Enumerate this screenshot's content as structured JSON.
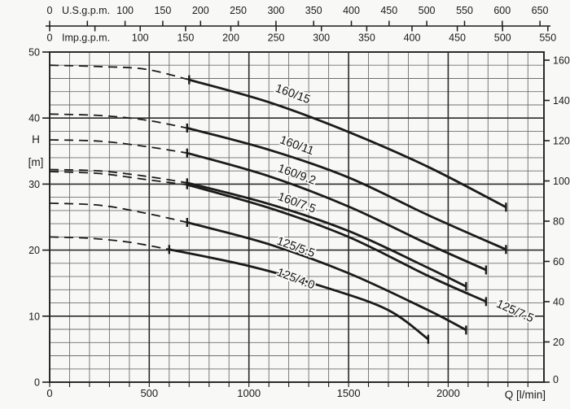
{
  "figure": {
    "background": "#f8f8f6",
    "ink": "#1b1b1b",
    "grid_minor_color": "#6f6f6f",
    "grid_major_color": "#2b2b2b"
  },
  "axes": {
    "top_primary": {
      "title": "U.S.g.p.m.",
      "unit_to_lmin": 3.7854,
      "labeled_ticks": [
        0,
        100,
        150,
        200,
        250,
        300,
        350,
        400,
        450,
        500,
        550,
        600,
        650
      ],
      "minor_step": 50
    },
    "top_secondary": {
      "title": "Imp.g.p.m.",
      "unit_to_lmin": 4.5461,
      "labeled_ticks": [
        0,
        100,
        150,
        200,
        250,
        300,
        350,
        400,
        450,
        500,
        550
      ],
      "minor_step": 50
    },
    "left": {
      "title_lines": [
        "H",
        "[m]"
      ],
      "labeled_ticks": [
        0,
        10,
        20,
        30,
        40,
        50
      ],
      "minor_step": 2,
      "range": [
        0,
        50
      ]
    },
    "right": {
      "labeled_ticks": [
        0,
        20,
        40,
        60,
        80,
        100,
        120,
        140,
        160
      ],
      "unit_to_m": 0.3048
    },
    "bottom": {
      "title": "Q [l/min]",
      "labeled_ticks": [
        0,
        500,
        1000,
        1500,
        2000
      ],
      "minor_step": 100,
      "range": [
        0,
        2480
      ]
    }
  },
  "chart_data": {
    "type": "line",
    "xlabel": "Q [l/min]",
    "ylabel": "H [m]",
    "x_range": [
      0,
      2480
    ],
    "y_range": [
      0,
      50
    ],
    "grid": true,
    "series": [
      {
        "name": "160/15",
        "dashed": [
          [
            0,
            48.0
          ],
          [
            250,
            47.8
          ],
          [
            480,
            47.4
          ],
          [
            700,
            45.8
          ]
        ],
        "solid": [
          [
            700,
            45.8
          ],
          [
            1100,
            42.4
          ],
          [
            1500,
            37.9
          ],
          [
            1900,
            32.6
          ],
          [
            2290,
            26.5
          ]
        ],
        "label": {
          "q": 1220,
          "h": 43.6,
          "angle": 20
        }
      },
      {
        "name": "160/11",
        "dashed": [
          [
            0,
            40.6
          ],
          [
            250,
            40.4
          ],
          [
            480,
            39.7
          ],
          [
            690,
            38.5
          ]
        ],
        "solid": [
          [
            690,
            38.5
          ],
          [
            1100,
            35.2
          ],
          [
            1500,
            31.0
          ],
          [
            1900,
            25.3
          ],
          [
            2290,
            20.1
          ]
        ],
        "label": {
          "q": 1240,
          "h": 35.8,
          "angle": 20
        }
      },
      {
        "name": "160/9.2",
        "dashed": [
          [
            0,
            36.7
          ],
          [
            250,
            36.5
          ],
          [
            480,
            35.7
          ],
          [
            690,
            34.7
          ]
        ],
        "solid": [
          [
            690,
            34.7
          ],
          [
            1100,
            31.2
          ],
          [
            1500,
            26.6
          ],
          [
            1900,
            20.9
          ],
          [
            2190,
            17.0
          ]
        ],
        "label": {
          "q": 1240,
          "h": 31.4,
          "angle": 20
        }
      },
      {
        "name": "160/7.5",
        "dashed": [
          [
            0,
            32.2
          ],
          [
            250,
            32.0
          ],
          [
            480,
            31.2
          ],
          [
            690,
            30.2
          ]
        ],
        "solid": [
          [
            690,
            30.2
          ],
          [
            1100,
            27.0
          ],
          [
            1500,
            22.9
          ],
          [
            1900,
            17.3
          ],
          [
            2090,
            14.5
          ]
        ],
        "label": {
          "q": 1240,
          "h": 27.1,
          "angle": 20
        }
      },
      {
        "name": "125/7.5",
        "dashed": [
          [
            0,
            31.9
          ],
          [
            250,
            31.6
          ],
          [
            480,
            30.7
          ],
          [
            690,
            29.9
          ]
        ],
        "solid": [
          [
            690,
            29.9
          ],
          [
            1100,
            26.4
          ],
          [
            1500,
            22.0
          ],
          [
            1900,
            16.1
          ],
          [
            2190,
            12.2
          ]
        ],
        "label": {
          "q": 2335,
          "h": 10.7,
          "angle": 24
        }
      },
      {
        "name": "125/5.5",
        "dashed": [
          [
            0,
            27.1
          ],
          [
            250,
            26.8
          ],
          [
            480,
            25.6
          ],
          [
            690,
            24.2
          ]
        ],
        "solid": [
          [
            690,
            24.2
          ],
          [
            1100,
            20.9
          ],
          [
            1500,
            16.5
          ],
          [
            1900,
            10.9
          ],
          [
            2090,
            7.9
          ]
        ],
        "label": {
          "q": 1235,
          "h": 20.4,
          "angle": 20
        }
      },
      {
        "name": "125/4.0",
        "dashed": [
          [
            0,
            22.0
          ],
          [
            200,
            21.8
          ],
          [
            400,
            21.2
          ],
          [
            600,
            20.1
          ]
        ],
        "solid": [
          [
            600,
            20.1
          ],
          [
            1000,
            17.6
          ],
          [
            1400,
            14.2
          ],
          [
            1700,
            10.9
          ],
          [
            1900,
            6.5
          ]
        ],
        "label": {
          "q": 1235,
          "h": 15.6,
          "angle": 21
        }
      }
    ]
  }
}
